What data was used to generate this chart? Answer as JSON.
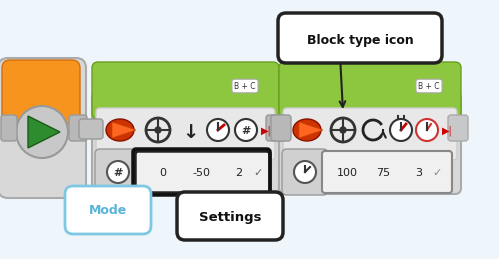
{
  "bg_color": "#ddeeff",
  "border_color": "#99c4e0",
  "outer_bg": "#eef6fc",
  "green_top": "#8dc63f",
  "green_dark": "#6a9e20",
  "body_color": "#dedede",
  "body_dark": "#b0b0b0",
  "settings_bg": "#e8e8e8",
  "settings_border": "#888888",
  "orange_color": "#f7941d",
  "red_motor": "#cc3300",
  "title": "Block type icon",
  "label_mode": "Mode",
  "label_settings": "Settings",
  "mode_border": "#7ec8e3",
  "mode_text": "#5ab4d8",
  "b1_vals": [
    "0",
    "-50",
    "2"
  ],
  "b2_vals": [
    "100",
    "75",
    "3"
  ],
  "port_label": "B + C"
}
